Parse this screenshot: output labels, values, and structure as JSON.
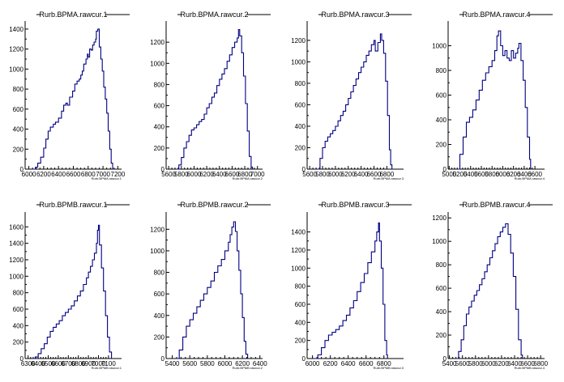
{
  "page": {
    "background": "#ffffff",
    "line_color": "#000080",
    "axis_color": "#000000"
  },
  "chart_data": [
    {
      "type": "step-histogram",
      "title": "Rurb.BPMA.rawcur.1",
      "xlabel": "Rurb.BPMA.rawcur.1",
      "xlim": [
        5950,
        7250
      ],
      "ylim": [
        0,
        1480
      ],
      "xticks": [
        6000,
        6200,
        6400,
        6600,
        6800,
        7000,
        7200
      ],
      "xtick_labels": [
        "6000",
        "6200",
        "6400",
        "6600",
        "6800",
        "7000",
        "7200"
      ],
      "yticks": [
        0,
        200,
        400,
        600,
        800,
        1000,
        1200,
        1400
      ],
      "points": [
        [
          6050,
          0
        ],
        [
          6090,
          20
        ],
        [
          6120,
          60
        ],
        [
          6160,
          120
        ],
        [
          6200,
          210
        ],
        [
          6230,
          300
        ],
        [
          6260,
          380
        ],
        [
          6290,
          420
        ],
        [
          6330,
          450
        ],
        [
          6360,
          470
        ],
        [
          6400,
          510
        ],
        [
          6440,
          580
        ],
        [
          6470,
          640
        ],
        [
          6500,
          660
        ],
        [
          6520,
          640
        ],
        [
          6550,
          720
        ],
        [
          6590,
          780
        ],
        [
          6620,
          850
        ],
        [
          6650,
          880
        ],
        [
          6680,
          900
        ],
        [
          6700,
          940
        ],
        [
          6720,
          980
        ],
        [
          6740,
          1050
        ],
        [
          6770,
          1100
        ],
        [
          6790,
          1150
        ],
        [
          6800,
          1120
        ],
        [
          6820,
          1200
        ],
        [
          6840,
          1190
        ],
        [
          6860,
          1240
        ],
        [
          6880,
          1270
        ],
        [
          6900,
          1300
        ],
        [
          6910,
          1380
        ],
        [
          6930,
          1400
        ],
        [
          6950,
          1220
        ],
        [
          6970,
          1100
        ],
        [
          6990,
          980
        ],
        [
          7010,
          820
        ],
        [
          7030,
          700
        ],
        [
          7050,
          560
        ],
        [
          7070,
          380
        ],
        [
          7090,
          200
        ],
        [
          7110,
          60
        ],
        [
          7130,
          0
        ]
      ]
    },
    {
      "type": "step-histogram",
      "title": "Rurb.BPMA.rawcur.2",
      "xlabel": "Rurb.BPMA.rawcur.2",
      "xlim": [
        5560,
        7080
      ],
      "ylim": [
        0,
        1400
      ],
      "xticks": [
        5600,
        5800,
        6000,
        6200,
        6400,
        6600,
        6800,
        7000
      ],
      "xtick_labels": [
        "5600",
        "5800",
        "6000",
        "6200",
        "6400",
        "6600",
        "6800",
        "7000"
      ],
      "yticks": [
        0,
        200,
        400,
        600,
        800,
        1000,
        1200
      ],
      "points": [
        [
          5720,
          0
        ],
        [
          5760,
          40
        ],
        [
          5800,
          110
        ],
        [
          5840,
          200
        ],
        [
          5880,
          260
        ],
        [
          5920,
          320
        ],
        [
          5960,
          370
        ],
        [
          6000,
          390
        ],
        [
          6040,
          420
        ],
        [
          6080,
          450
        ],
        [
          6120,
          470
        ],
        [
          6160,
          520
        ],
        [
          6200,
          580
        ],
        [
          6240,
          620
        ],
        [
          6280,
          680
        ],
        [
          6320,
          720
        ],
        [
          6360,
          790
        ],
        [
          6400,
          850
        ],
        [
          6440,
          900
        ],
        [
          6480,
          950
        ],
        [
          6520,
          1020
        ],
        [
          6560,
          1080
        ],
        [
          6600,
          1150
        ],
        [
          6640,
          1200
        ],
        [
          6680,
          1240
        ],
        [
          6700,
          1320
        ],
        [
          6720,
          1260
        ],
        [
          6750,
          1100
        ],
        [
          6780,
          880
        ],
        [
          6810,
          620
        ],
        [
          6840,
          360
        ],
        [
          6870,
          120
        ],
        [
          6900,
          20
        ],
        [
          6920,
          0
        ]
      ]
    },
    {
      "type": "step-histogram",
      "title": "Rurb.BPMA.rawcur.3",
      "xlabel": "Rurb.BPMA.rawcur.3",
      "xlim": [
        5560,
        7060
      ],
      "ylim": [
        0,
        1380
      ],
      "xticks": [
        5600,
        5800,
        6000,
        6200,
        6400,
        6600,
        6800
      ],
      "xtick_labels": [
        "5600",
        "5800",
        "6000",
        "6200",
        "6400",
        "6600",
        "6800"
      ],
      "yticks": [
        0,
        200,
        400,
        600,
        800,
        1000,
        1200
      ],
      "points": [
        [
          5720,
          0
        ],
        [
          5760,
          100
        ],
        [
          5800,
          200
        ],
        [
          5840,
          260
        ],
        [
          5880,
          300
        ],
        [
          5920,
          330
        ],
        [
          5960,
          360
        ],
        [
          6000,
          400
        ],
        [
          6040,
          450
        ],
        [
          6080,
          500
        ],
        [
          6120,
          540
        ],
        [
          6160,
          600
        ],
        [
          6200,
          660
        ],
        [
          6240,
          720
        ],
        [
          6280,
          780
        ],
        [
          6320,
          840
        ],
        [
          6360,
          900
        ],
        [
          6400,
          950
        ],
        [
          6440,
          1000
        ],
        [
          6480,
          1060
        ],
        [
          6520,
          1100
        ],
        [
          6560,
          1160
        ],
        [
          6600,
          1200
        ],
        [
          6620,
          1100
        ],
        [
          6660,
          1180
        ],
        [
          6700,
          1260
        ],
        [
          6720,
          1200
        ],
        [
          6750,
          1080
        ],
        [
          6780,
          820
        ],
        [
          6810,
          500
        ],
        [
          6840,
          180
        ],
        [
          6860,
          40
        ],
        [
          6880,
          0
        ]
      ]
    },
    {
      "type": "step-histogram",
      "title": "Rurb.BPMA.rawcur.4",
      "xlabel": "Rurb.BPMA.rawcur.4",
      "xlim": [
        4980,
        6780
      ],
      "ylim": [
        0,
        1200
      ],
      "xticks": [
        5000,
        5200,
        5400,
        5600,
        5800,
        6000,
        6200,
        6400,
        6600
      ],
      "xtick_labels": [
        "5000",
        "5200",
        "5400",
        "5600",
        "5800",
        "6000",
        "6200",
        "6400",
        "6600"
      ],
      "yticks": [
        0,
        200,
        400,
        600,
        800,
        1000
      ],
      "points": [
        [
          5150,
          0
        ],
        [
          5200,
          120
        ],
        [
          5260,
          260
        ],
        [
          5320,
          380
        ],
        [
          5380,
          420
        ],
        [
          5440,
          480
        ],
        [
          5500,
          560
        ],
        [
          5560,
          640
        ],
        [
          5620,
          720
        ],
        [
          5680,
          780
        ],
        [
          5740,
          830
        ],
        [
          5800,
          880
        ],
        [
          5850,
          960
        ],
        [
          5890,
          1080
        ],
        [
          5920,
          1120
        ],
        [
          5960,
          1000
        ],
        [
          6000,
          920
        ],
        [
          6040,
          960
        ],
        [
          6080,
          900
        ],
        [
          6120,
          880
        ],
        [
          6160,
          960
        ],
        [
          6200,
          900
        ],
        [
          6240,
          940
        ],
        [
          6280,
          980
        ],
        [
          6300,
          1020
        ],
        [
          6340,
          880
        ],
        [
          6380,
          720
        ],
        [
          6420,
          500
        ],
        [
          6460,
          260
        ],
        [
          6500,
          80
        ],
        [
          6520,
          0
        ]
      ]
    },
    {
      "type": "step-histogram",
      "title": "Rurb.BPMB.rawcur.1",
      "xlabel": "Rurb.BPMB.rawcur.1",
      "xlim": [
        6270,
        7230
      ],
      "ylim": [
        0,
        1780
      ],
      "xticks": [
        6300,
        6400,
        6500,
        6600,
        6700,
        6800,
        6900,
        7000,
        7100
      ],
      "xtick_labels": [
        "6300",
        "6400",
        "6500",
        "6600",
        "6700",
        "6800",
        "6900",
        "7000",
        "7100"
      ],
      "yticks": [
        0,
        200,
        400,
        600,
        800,
        1000,
        1200,
        1400,
        1600
      ],
      "points": [
        [
          6340,
          0
        ],
        [
          6370,
          20
        ],
        [
          6400,
          60
        ],
        [
          6430,
          120
        ],
        [
          6460,
          180
        ],
        [
          6490,
          260
        ],
        [
          6520,
          330
        ],
        [
          6550,
          380
        ],
        [
          6580,
          420
        ],
        [
          6610,
          460
        ],
        [
          6640,
          520
        ],
        [
          6670,
          560
        ],
        [
          6700,
          600
        ],
        [
          6730,
          640
        ],
        [
          6760,
          700
        ],
        [
          6790,
          760
        ],
        [
          6820,
          820
        ],
        [
          6850,
          900
        ],
        [
          6880,
          980
        ],
        [
          6900,
          1050
        ],
        [
          6920,
          1120
        ],
        [
          6940,
          1200
        ],
        [
          6960,
          1280
        ],
        [
          6980,
          1400
        ],
        [
          6990,
          1560
        ],
        [
          7000,
          1620
        ],
        [
          7010,
          1380
        ],
        [
          7030,
          1100
        ],
        [
          7050,
          820
        ],
        [
          7070,
          520
        ],
        [
          7090,
          260
        ],
        [
          7110,
          80
        ],
        [
          7130,
          0
        ]
      ]
    },
    {
      "type": "step-histogram",
      "title": "Rurb.BPMB.rawcur.2",
      "xlabel": "Rurb.BPMB.rawcur.2",
      "xlim": [
        5330,
        6430
      ],
      "ylim": [
        0,
        1360
      ],
      "xticks": [
        5400,
        5600,
        5800,
        6000,
        6200,
        6400
      ],
      "xtick_labels": [
        "5400",
        "5600",
        "5800",
        "6000",
        "6200",
        "6400"
      ],
      "yticks": [
        0,
        200,
        400,
        600,
        800,
        1000,
        1200
      ],
      "points": [
        [
          5440,
          0
        ],
        [
          5480,
          80
        ],
        [
          5520,
          200
        ],
        [
          5560,
          300
        ],
        [
          5600,
          360
        ],
        [
          5640,
          420
        ],
        [
          5680,
          480
        ],
        [
          5720,
          540
        ],
        [
          5760,
          600
        ],
        [
          5800,
          660
        ],
        [
          5840,
          720
        ],
        [
          5880,
          800
        ],
        [
          5920,
          860
        ],
        [
          5960,
          920
        ],
        [
          6000,
          1000
        ],
        [
          6040,
          1080
        ],
        [
          6060,
          1150
        ],
        [
          6080,
          1220
        ],
        [
          6100,
          1270
        ],
        [
          6120,
          1180
        ],
        [
          6140,
          1000
        ],
        [
          6160,
          820
        ],
        [
          6180,
          600
        ],
        [
          6200,
          380
        ],
        [
          6220,
          160
        ],
        [
          6240,
          40
        ],
        [
          6260,
          0
        ]
      ]
    },
    {
      "type": "step-histogram",
      "title": "Rurb.BPMB.rawcur.3",
      "xlabel": "Rurb.BPMB.rawcur.3",
      "xlim": [
        5940,
        7020
      ],
      "ylim": [
        0,
        1620
      ],
      "xticks": [
        6000,
        6200,
        6400,
        6600,
        6800
      ],
      "xtick_labels": [
        "6000",
        "6200",
        "6400",
        "6600",
        "6800"
      ],
      "yticks": [
        0,
        200,
        400,
        600,
        800,
        1000,
        1200,
        1400
      ],
      "points": [
        [
          6020,
          0
        ],
        [
          6060,
          40
        ],
        [
          6100,
          120
        ],
        [
          6140,
          200
        ],
        [
          6180,
          260
        ],
        [
          6220,
          290
        ],
        [
          6260,
          320
        ],
        [
          6300,
          360
        ],
        [
          6340,
          420
        ],
        [
          6380,
          480
        ],
        [
          6420,
          560
        ],
        [
          6460,
          640
        ],
        [
          6500,
          740
        ],
        [
          6540,
          840
        ],
        [
          6580,
          940
        ],
        [
          6620,
          1060
        ],
        [
          6660,
          1180
        ],
        [
          6700,
          1300
        ],
        [
          6720,
          1400
        ],
        [
          6740,
          1500
        ],
        [
          6750,
          1300
        ],
        [
          6770,
          1000
        ],
        [
          6790,
          600
        ],
        [
          6810,
          200
        ],
        [
          6830,
          40
        ],
        [
          6840,
          0
        ]
      ]
    },
    {
      "type": "step-histogram",
      "title": "Rurb.BPMB.rawcur.4",
      "xlabel": "Rurb.BPMB.rawcur.4",
      "xlim": [
        5380,
        6860
      ],
      "ylim": [
        0,
        1250
      ],
      "xticks": [
        5400,
        5600,
        5800,
        6000,
        6200,
        6400,
        6600,
        6800
      ],
      "xtick_labels": [
        "5400",
        "5600",
        "5800",
        "6000",
        "6200",
        "6400",
        "6600",
        "6800"
      ],
      "yticks": [
        0,
        200,
        400,
        600,
        800,
        1000,
        1200
      ],
      "points": [
        [
          5500,
          0
        ],
        [
          5540,
          60
        ],
        [
          5580,
          160
        ],
        [
          5620,
          280
        ],
        [
          5660,
          380
        ],
        [
          5700,
          440
        ],
        [
          5740,
          490
        ],
        [
          5780,
          540
        ],
        [
          5820,
          580
        ],
        [
          5860,
          630
        ],
        [
          5900,
          680
        ],
        [
          5940,
          740
        ],
        [
          5980,
          800
        ],
        [
          6020,
          860
        ],
        [
          6060,
          920
        ],
        [
          6100,
          980
        ],
        [
          6140,
          1040
        ],
        [
          6180,
          1080
        ],
        [
          6220,
          1120
        ],
        [
          6260,
          1150
        ],
        [
          6300,
          1060
        ],
        [
          6340,
          900
        ],
        [
          6380,
          700
        ],
        [
          6420,
          420
        ],
        [
          6460,
          160
        ],
        [
          6500,
          30
        ],
        [
          6520,
          0
        ]
      ]
    }
  ]
}
